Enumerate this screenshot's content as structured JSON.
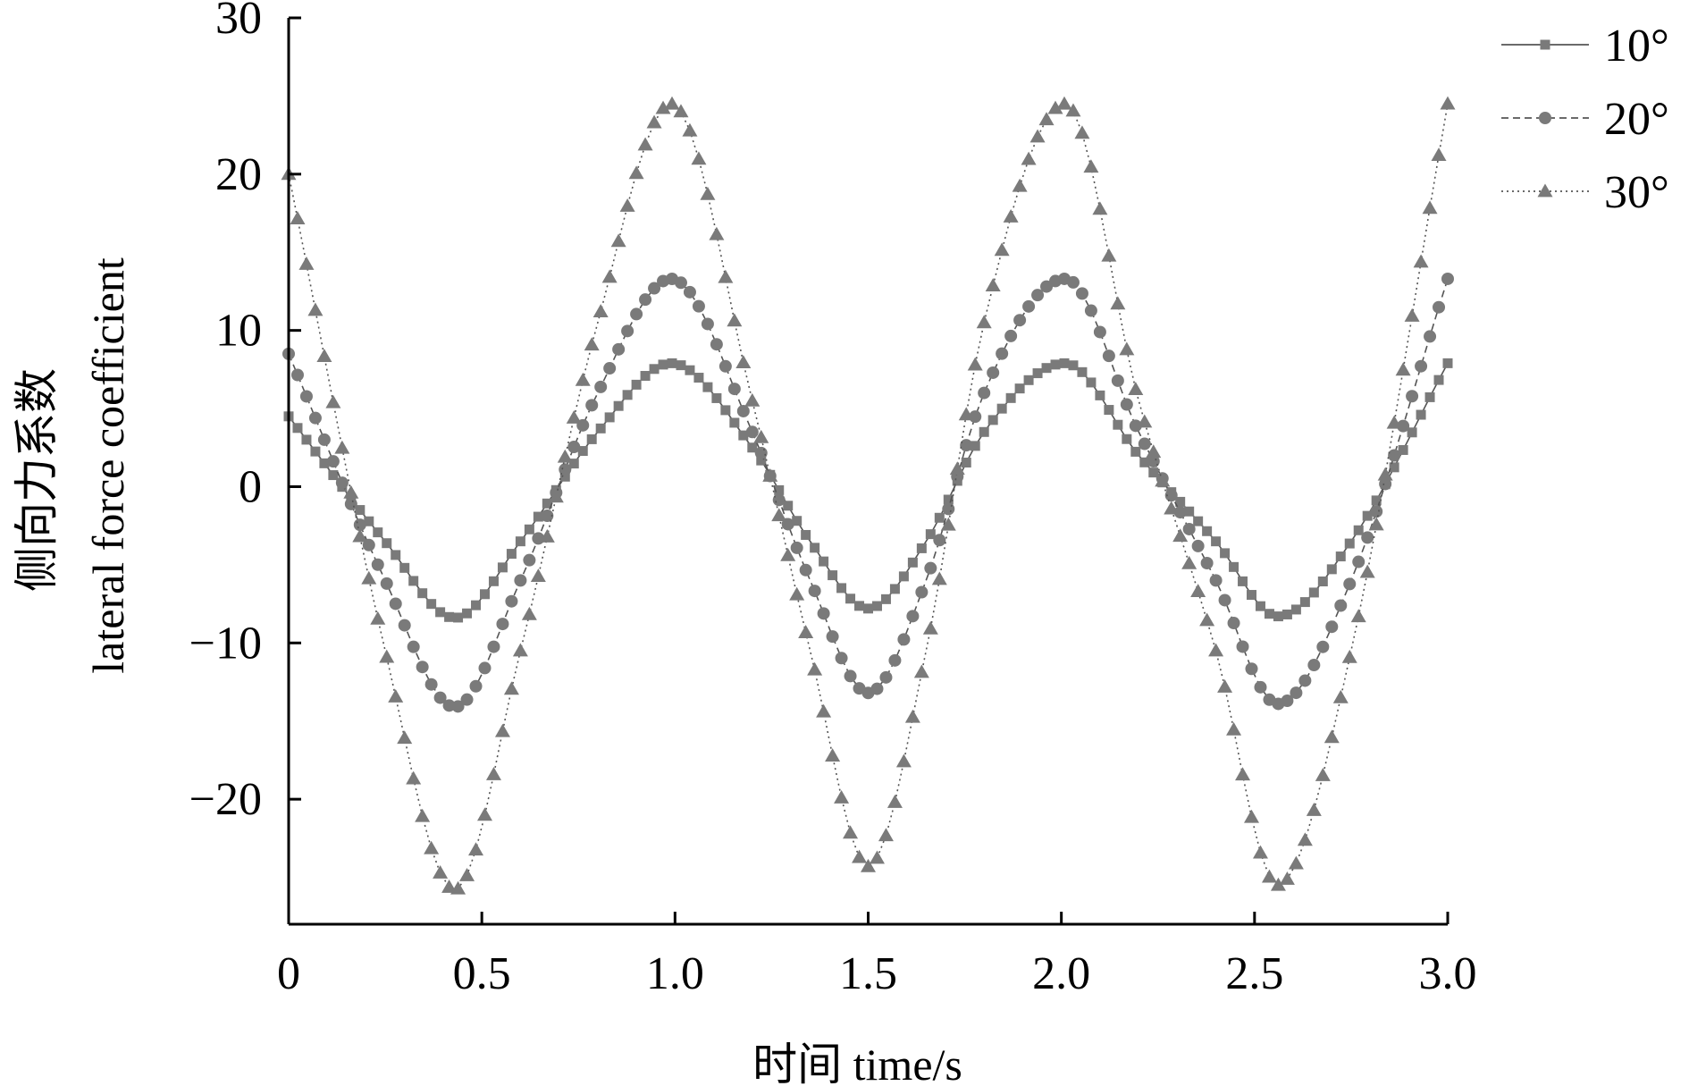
{
  "chart_data": {
    "type": "line",
    "title": "",
    "xlabel": "时间 time/s",
    "ylabel_line1": "侧向力系数",
    "ylabel_line2": "lateral force coefficient",
    "xlim": [
      0,
      3.0
    ],
    "ylim": [
      -28,
      30
    ],
    "xticks": [
      0,
      0.5,
      1.0,
      1.5,
      2.0,
      2.5,
      3.0
    ],
    "xtick_labels": [
      "0",
      "0.5",
      "1.0",
      "1.5",
      "2.0",
      "2.5",
      "3.0"
    ],
    "yticks": [
      30,
      20,
      10,
      0,
      -10,
      -20
    ],
    "ytick_labels": [
      "30",
      "20",
      "10",
      "0",
      "−10",
      "−20"
    ],
    "grid": false,
    "legend_position": "top-right",
    "marker_color": "#7a7a7a",
    "x": [
      0,
      0.25,
      0.43,
      0.6,
      0.8,
      0.99,
      1.2,
      1.35,
      1.5,
      1.65,
      1.8,
      2.01,
      2.2,
      2.4,
      2.56,
      2.75,
      3.0
    ],
    "series": [
      {
        "name": "10°",
        "marker": "square",
        "dash": "solid",
        "values": [
          4.5,
          -3.5,
          -8.4,
          -3.5,
          3.5,
          7.9,
          2.5,
          -3.5,
          -7.8,
          -3.5,
          3.5,
          7.9,
          2.0,
          -3.5,
          -8.3,
          -3.5,
          7.9
        ]
      },
      {
        "name": "20°",
        "marker": "circle",
        "dash": "dashed",
        "values": [
          8.5,
          -6.0,
          -14.1,
          -6.0,
          6.0,
          13.3,
          3.5,
          -6.0,
          -13.2,
          -6.0,
          6.0,
          13.3,
          3.5,
          -6.0,
          -13.9,
          -6.0,
          13.3
        ]
      },
      {
        "name": "30°",
        "marker": "triangle",
        "dash": "dotted",
        "values": [
          20.0,
          -10.5,
          -25.8,
          -10.5,
          10.5,
          24.5,
          5.5,
          -10.5,
          -24.3,
          -10.5,
          10.5,
          24.5,
          5.5,
          -10.5,
          -25.5,
          -10.5,
          24.5
        ]
      }
    ]
  }
}
